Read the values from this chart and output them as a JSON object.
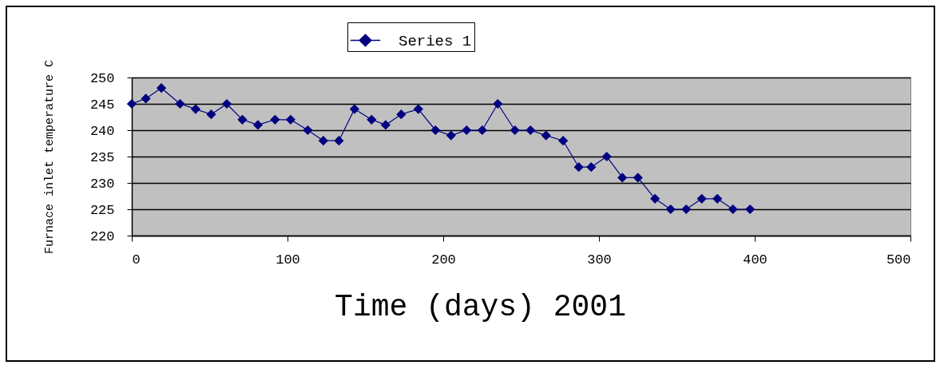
{
  "chart_data": {
    "type": "line",
    "xlabel": "Time (days) 2001",
    "ylabel": "Furnace inlet temperature C",
    "x": [
      0,
      9,
      19,
      31,
      41,
      51,
      61,
      71,
      81,
      92,
      102,
      113,
      123,
      133,
      143,
      154,
      163,
      173,
      184,
      195,
      205,
      215,
      225,
      235,
      246,
      256,
      266,
      277,
      287,
      295,
      305,
      315,
      325,
      336,
      346,
      356,
      366,
      376,
      386,
      397
    ],
    "series": [
      {
        "name": "Series 1",
        "color": "#000080",
        "values": [
          245,
          246,
          248,
          245,
          244,
          243,
          245,
          242,
          241,
          242,
          242,
          240,
          238,
          238,
          244,
          242,
          241,
          243,
          244,
          240,
          239,
          240,
          240,
          245,
          240,
          240,
          239,
          238,
          233,
          233,
          235,
          231,
          231,
          227,
          225,
          225,
          227,
          227,
          225,
          225
        ]
      }
    ],
    "xlim": [
      0,
      500
    ],
    "ylim": [
      220,
      250
    ],
    "xticks": [
      0,
      100,
      200,
      300,
      400,
      500
    ],
    "yticks": [
      220,
      225,
      230,
      235,
      240,
      245,
      250
    ],
    "grid": "y",
    "legend": "top",
    "marker": "diamond",
    "line_style": "solid"
  }
}
